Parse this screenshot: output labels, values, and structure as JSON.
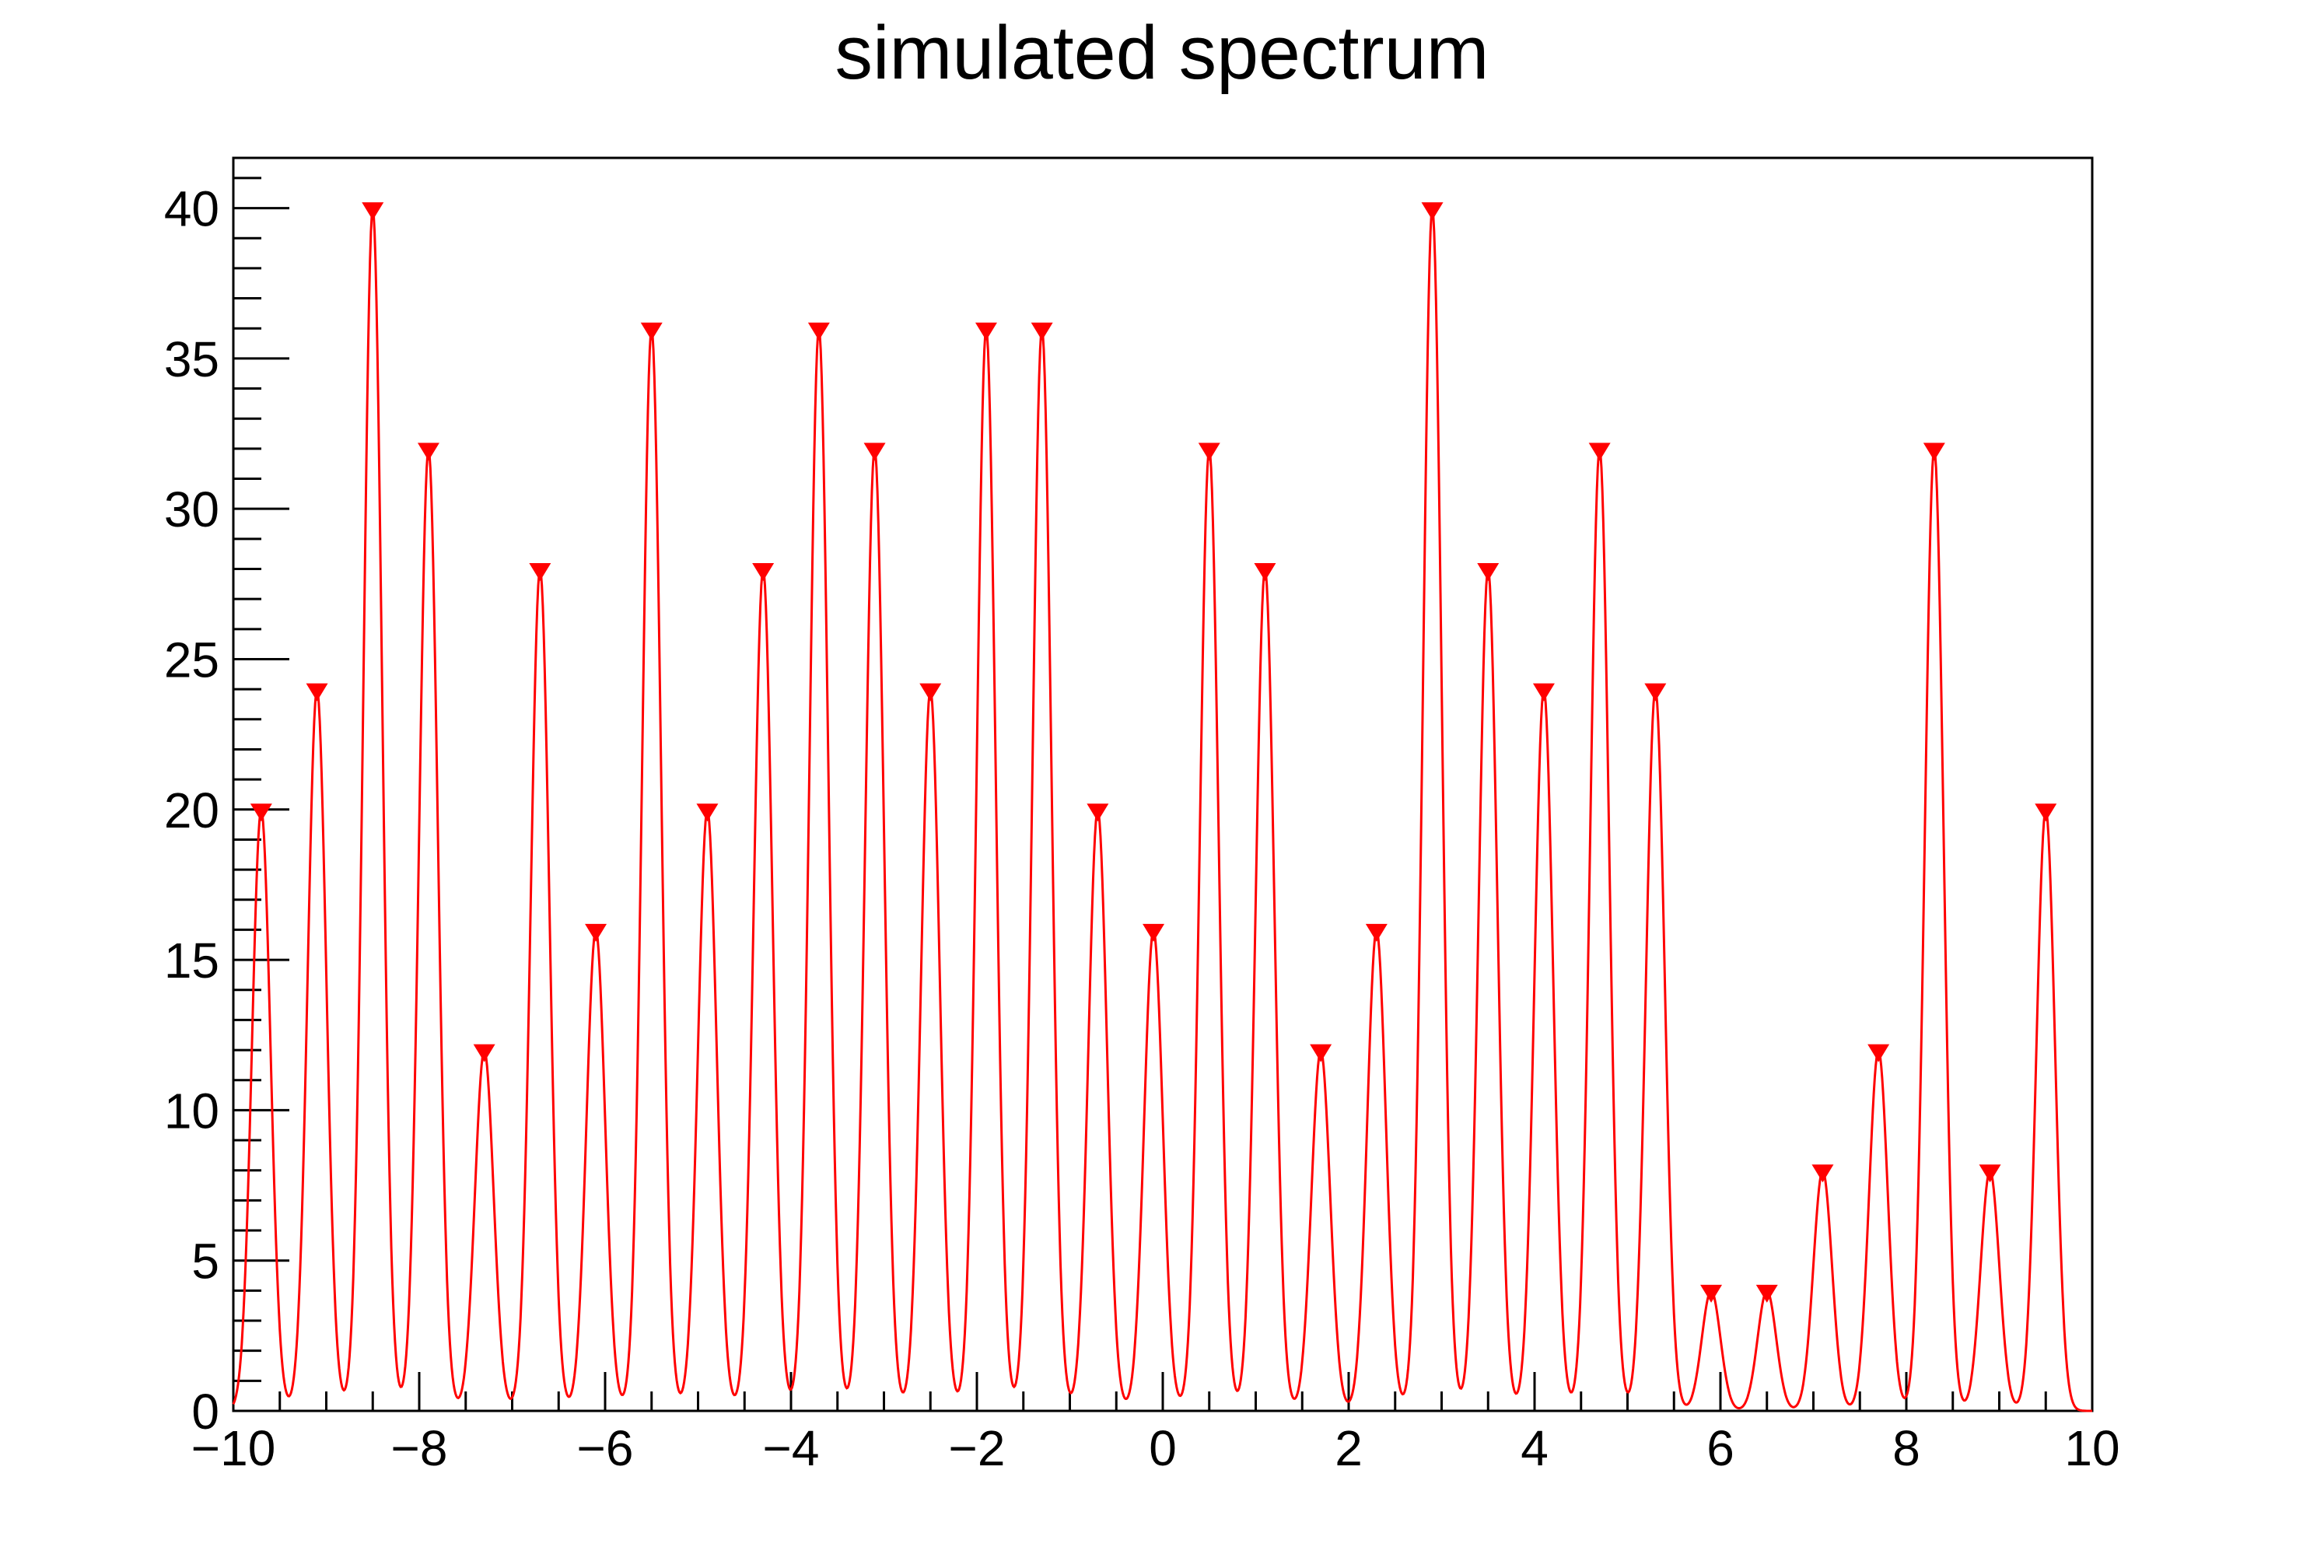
{
  "title": "simulated spectrum",
  "colors": {
    "background": "#ffffff",
    "axis": "#000000",
    "text": "#000000",
    "curve": "#ff0000",
    "marker": "#ff0000"
  },
  "chart_data": {
    "type": "line",
    "title": "simulated spectrum",
    "xlabel": "",
    "ylabel": "",
    "xlim": [
      -10,
      10
    ],
    "ylim": [
      0,
      41.67
    ],
    "grid": false,
    "legend": null,
    "x_major_ticks": [
      -10,
      -8,
      -6,
      -4,
      -2,
      0,
      2,
      4,
      6,
      8,
      10
    ],
    "x_tick_labels": [
      "−10",
      "−8",
      "−6",
      "−4",
      "−2",
      "0",
      "2",
      "4",
      "6",
      "8",
      "10"
    ],
    "x_minor_tick_step": 0.5,
    "y_major_ticks": [
      0,
      5,
      10,
      15,
      20,
      25,
      30,
      35,
      40
    ],
    "y_tick_labels": [
      "0",
      "5",
      "10",
      "15",
      "20",
      "25",
      "30",
      "35",
      "40"
    ],
    "y_minor_tick_step": 1,
    "curve": {
      "model": "sum_of_gaussians",
      "sigma": 0.1,
      "baseline": 0,
      "color": "#ff0000"
    },
    "marker": {
      "shape": "triangle-down",
      "color": "#ff0000",
      "width": 28,
      "height": 23
    },
    "peaks": [
      {
        "x": -9.7,
        "amplitude": 20
      },
      {
        "x": -9.1,
        "amplitude": 24
      },
      {
        "x": -8.5,
        "amplitude": 40
      },
      {
        "x": -7.9,
        "amplitude": 32
      },
      {
        "x": -7.3,
        "amplitude": 12
      },
      {
        "x": -6.7,
        "amplitude": 28
      },
      {
        "x": -6.1,
        "amplitude": 16
      },
      {
        "x": -5.5,
        "amplitude": 36
      },
      {
        "x": -4.9,
        "amplitude": 20
      },
      {
        "x": -4.3,
        "amplitude": 28
      },
      {
        "x": -3.7,
        "amplitude": 36
      },
      {
        "x": -3.1,
        "amplitude": 32
      },
      {
        "x": -2.5,
        "amplitude": 24
      },
      {
        "x": -1.9,
        "amplitude": 36
      },
      {
        "x": -1.3,
        "amplitude": 36
      },
      {
        "x": -0.7,
        "amplitude": 20
      },
      {
        "x": -0.1,
        "amplitude": 16
      },
      {
        "x": 0.5,
        "amplitude": 32
      },
      {
        "x": 1.1,
        "amplitude": 28
      },
      {
        "x": 1.7,
        "amplitude": 12
      },
      {
        "x": 2.3,
        "amplitude": 16
      },
      {
        "x": 2.9,
        "amplitude": 40
      },
      {
        "x": 3.5,
        "amplitude": 28
      },
      {
        "x": 4.1,
        "amplitude": 24
      },
      {
        "x": 4.7,
        "amplitude": 32
      },
      {
        "x": 5.3,
        "amplitude": 24
      },
      {
        "x": 5.9,
        "amplitude": 4
      },
      {
        "x": 6.5,
        "amplitude": 4
      },
      {
        "x": 7.1,
        "amplitude": 8
      },
      {
        "x": 7.7,
        "amplitude": 12
      },
      {
        "x": 8.3,
        "amplitude": 32
      },
      {
        "x": 8.9,
        "amplitude": 8
      },
      {
        "x": 9.5,
        "amplitude": 20
      }
    ]
  }
}
